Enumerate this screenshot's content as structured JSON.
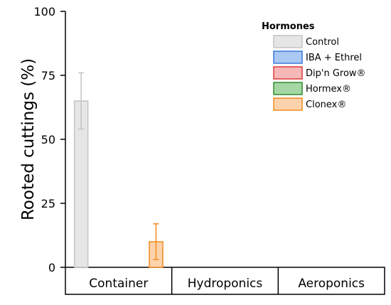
{
  "chart_data": {
    "type": "bar",
    "ylabel": "Rooted cuttings (%)",
    "ylim": [
      0,
      100
    ],
    "yticks": [
      0,
      25,
      50,
      75,
      100
    ],
    "categories": [
      "Container",
      "Hydroponics",
      "Aeroponics"
    ],
    "legend": {
      "title": "Hormones",
      "placement": "top-right"
    },
    "series": [
      {
        "name": "Control",
        "fill": "#e6e6e6",
        "stroke": "#c4c4c4",
        "values": [
          65,
          null,
          null
        ],
        "error": [
          11,
          null,
          null
        ]
      },
      {
        "name": "IBA + Ethrel",
        "fill": "#a9c8f2",
        "stroke": "#3b78d8",
        "values": [
          null,
          null,
          null
        ],
        "error": [
          null,
          null,
          null
        ]
      },
      {
        "name": "Dip'n Grow®",
        "fill": "#f6b7b7",
        "stroke": "#dc3c3c",
        "values": [
          null,
          null,
          null
        ],
        "error": [
          null,
          null,
          null
        ]
      },
      {
        "name": "Hormex®",
        "fill": "#a5d7a5",
        "stroke": "#2e8b2e",
        "values": [
          null,
          null,
          null
        ],
        "error": [
          null,
          null,
          null
        ]
      },
      {
        "name": "Clonex®",
        "fill": "#fcd3ac",
        "stroke": "#f28c1e",
        "values": [
          10,
          null,
          null
        ],
        "error": [
          7,
          null,
          null
        ]
      }
    ],
    "grid": false
  }
}
